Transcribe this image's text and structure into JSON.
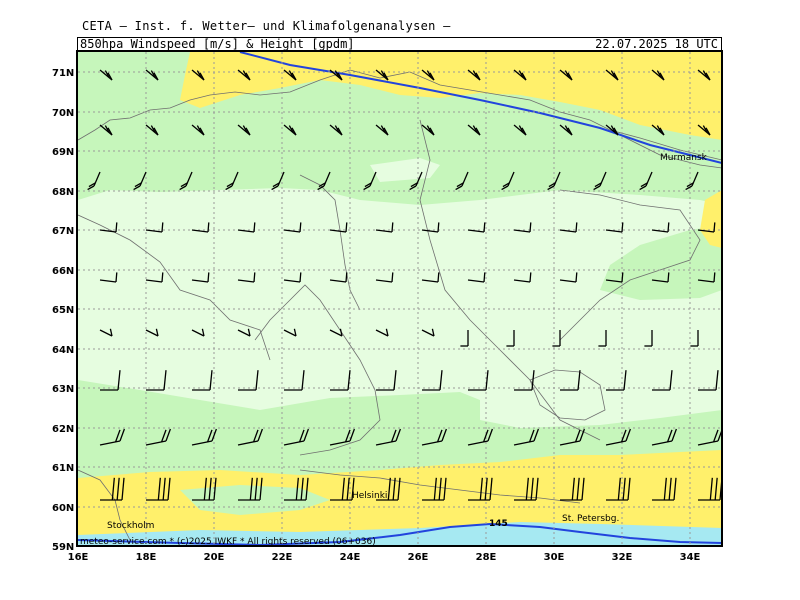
{
  "header": {
    "title": "CETA — Inst. f. Wetter— und Klimafolgenanalysen —",
    "parameter": "850hpa_Windspeed_[m/s]_&_Height_[gpdm]",
    "valid_time": "22.07.2025  18 UTC"
  },
  "axes": {
    "lat_labels": [
      "71N",
      "70N",
      "69N",
      "68N",
      "67N",
      "66N",
      "65N",
      "64N",
      "63N",
      "62N",
      "61N",
      "60N",
      "59N"
    ],
    "lon_labels": [
      "16E",
      "18E",
      "20E",
      "22E",
      "24E",
      "26E",
      "28E",
      "30E",
      "32E",
      "34E"
    ]
  },
  "places": {
    "murmansk": "Murmansk",
    "helsinki": "Helsinki",
    "stockholm": "Stockholm",
    "st_petersburg": "St. Petersbg."
  },
  "contour_label": "145",
  "credit": "meteo-service.com * (c)2025 IWKF * All rights reserved (06+036)",
  "colors": {
    "wind_light": "#e6fde0",
    "wind_mid": "#c6f6bb",
    "wind_strong": "#fff06b",
    "contour": "#2244dd",
    "grid": "#999999",
    "coast": "#6f6f6f"
  }
}
